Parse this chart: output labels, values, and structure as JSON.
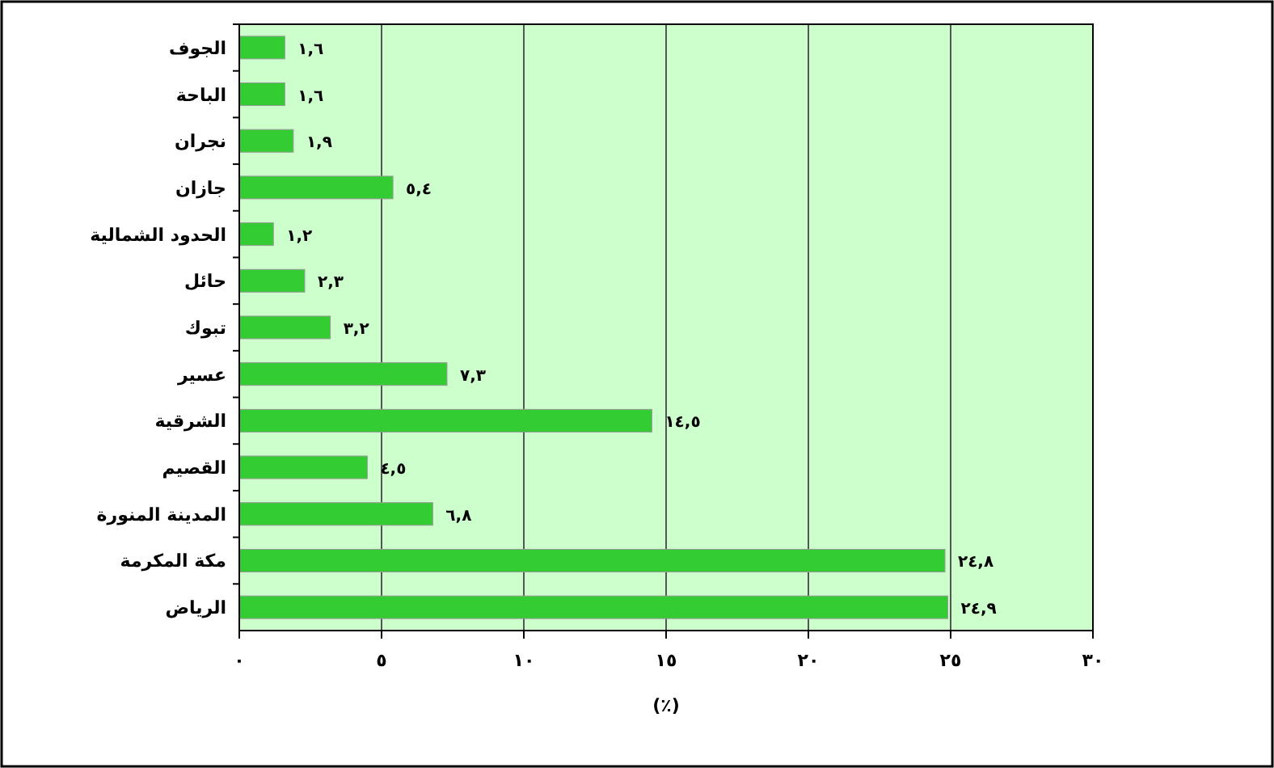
{
  "chart_data": {
    "type": "bar",
    "orientation": "horizontal",
    "categories": [
      "الجوف",
      "الباحة",
      "نجران",
      "جازان",
      "الحدود الشمالية",
      "حائل",
      "تبوك",
      "عسير",
      "الشرقية",
      "القصيم",
      "المدينة المنورة",
      "مكة المكرمة",
      "الرياض"
    ],
    "values": [
      1.6,
      1.6,
      1.9,
      5.4,
      1.2,
      2.3,
      3.2,
      7.3,
      14.5,
      4.5,
      6.8,
      24.8,
      24.9
    ],
    "value_labels": [
      "١,٦",
      "١,٦",
      "١,٩",
      "٥,٤",
      "١,٢",
      "٢,٣",
      "٣,٢",
      "٧,٣",
      "١٤,٥",
      "٤,٥",
      "٦,٨",
      "٢٤,٨",
      "٢٤,٩"
    ],
    "color": "#33cc33",
    "xlim": [
      0,
      30
    ],
    "xticks": [
      {
        "value": 0,
        "label": "٠"
      },
      {
        "value": 5,
        "label": "٥"
      },
      {
        "value": 10,
        "label": "١٠"
      },
      {
        "value": 15,
        "label": "١٥"
      },
      {
        "value": 20,
        "label": "٢٠"
      },
      {
        "value": 25,
        "label": "٢٥"
      },
      {
        "value": 30,
        "label": "٣٠"
      }
    ],
    "xlabel": "(٪)",
    "grid": "x"
  }
}
